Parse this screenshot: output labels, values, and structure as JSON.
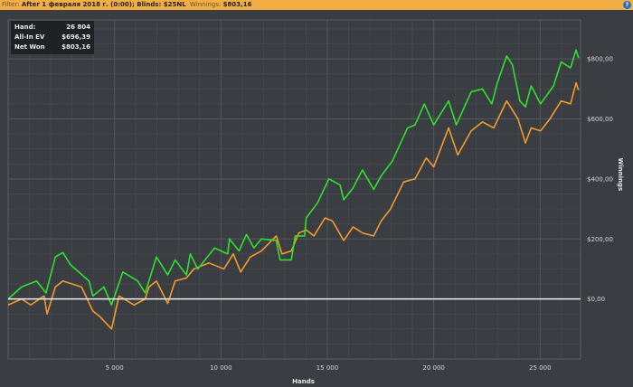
{
  "filter_bar": {
    "filter_label": "Filter:",
    "filter_value": "After 1 февраля 2018 г. (0:00); Blinds: $25NL",
    "winnings_label": "Winnings:",
    "winnings_value": "$803,16",
    "help_icon": "question-icon"
  },
  "legend": {
    "rows": [
      {
        "label": "Hand:",
        "value": "26 804"
      },
      {
        "label": "All-In EV",
        "value": "$696,39"
      },
      {
        "label": "Net Won",
        "value": "$803,16"
      }
    ]
  },
  "colors": {
    "net_won": "#2fe02f",
    "all_in_ev": "#f39a2e",
    "zero_line": "#f0f0f0",
    "background": "#3a3d42",
    "topbar": "#f2ae44"
  },
  "chart_data": {
    "type": "line",
    "xlabel": "Hands",
    "ylabel": "Winnings",
    "xlim": [
      0,
      26900
    ],
    "ylim": [
      -200,
      930
    ],
    "grid": true,
    "x_ticks": [
      5000,
      10000,
      15000,
      20000,
      25000
    ],
    "x_tick_labels": [
      "5 000",
      "10 000",
      "15 000",
      "20 000",
      "25 000"
    ],
    "y_ticks": [
      0,
      200,
      400,
      600,
      800
    ],
    "y_tick_labels": [
      "$0,00",
      "$200,00",
      "$400,00",
      "$600,00",
      "$800,00"
    ],
    "series": [
      {
        "name": "Net Won",
        "color": "#2fe02f",
        "points": [
          [
            0,
            0
          ],
          [
            630,
            40
          ],
          [
            1340,
            60
          ],
          [
            1780,
            20
          ],
          [
            2220,
            140
          ],
          [
            2570,
            155
          ],
          [
            2920,
            115
          ],
          [
            3800,
            60
          ],
          [
            3980,
            10
          ],
          [
            4500,
            40
          ],
          [
            4860,
            -20
          ],
          [
            5390,
            90
          ],
          [
            6090,
            60
          ],
          [
            6440,
            20
          ],
          [
            6970,
            140
          ],
          [
            7500,
            80
          ],
          [
            7850,
            130
          ],
          [
            8380,
            80
          ],
          [
            8560,
            150
          ],
          [
            8910,
            100
          ],
          [
            9700,
            170
          ],
          [
            10320,
            150
          ],
          [
            10400,
            200
          ],
          [
            10850,
            160
          ],
          [
            11200,
            215
          ],
          [
            11550,
            170
          ],
          [
            11900,
            200
          ],
          [
            12600,
            195
          ],
          [
            12780,
            130
          ],
          [
            13310,
            130
          ],
          [
            13490,
            210
          ],
          [
            13930,
            210
          ],
          [
            14010,
            270
          ],
          [
            14540,
            320
          ],
          [
            15070,
            400
          ],
          [
            15600,
            380
          ],
          [
            15770,
            330
          ],
          [
            16210,
            370
          ],
          [
            16650,
            430
          ],
          [
            17180,
            365
          ],
          [
            17530,
            410
          ],
          [
            18060,
            460
          ],
          [
            18770,
            570
          ],
          [
            19120,
            580
          ],
          [
            19560,
            650
          ],
          [
            20000,
            580
          ],
          [
            20700,
            660
          ],
          [
            21060,
            580
          ],
          [
            21760,
            690
          ],
          [
            22290,
            700
          ],
          [
            22730,
            650
          ],
          [
            22990,
            720
          ],
          [
            23430,
            810
          ],
          [
            23700,
            780
          ],
          [
            24050,
            660
          ],
          [
            24310,
            640
          ],
          [
            24580,
            710
          ],
          [
            25020,
            650
          ],
          [
            25630,
            710
          ],
          [
            25990,
            790
          ],
          [
            26430,
            770
          ],
          [
            26690,
            830
          ],
          [
            26804,
            803
          ]
        ]
      },
      {
        "name": "All-In EV",
        "color": "#f39a2e",
        "points": [
          [
            0,
            -20
          ],
          [
            630,
            0
          ],
          [
            1060,
            -20
          ],
          [
            1690,
            10
          ],
          [
            1830,
            -50
          ],
          [
            2220,
            40
          ],
          [
            2570,
            60
          ],
          [
            3450,
            40
          ],
          [
            3980,
            -40
          ],
          [
            4330,
            -60
          ],
          [
            4860,
            -100
          ],
          [
            5210,
            10
          ],
          [
            5920,
            -20
          ],
          [
            6440,
            0
          ],
          [
            6620,
            40
          ],
          [
            6970,
            60
          ],
          [
            7500,
            -15
          ],
          [
            7850,
            60
          ],
          [
            8380,
            70
          ],
          [
            8730,
            100
          ],
          [
            9440,
            120
          ],
          [
            10140,
            100
          ],
          [
            10580,
            150
          ],
          [
            10930,
            90
          ],
          [
            11380,
            140
          ],
          [
            11900,
            160
          ],
          [
            12600,
            210
          ],
          [
            12870,
            150
          ],
          [
            13310,
            160
          ],
          [
            13660,
            220
          ],
          [
            14010,
            230
          ],
          [
            14370,
            210
          ],
          [
            14890,
            270
          ],
          [
            15240,
            260
          ],
          [
            15770,
            195
          ],
          [
            16210,
            240
          ],
          [
            16650,
            220
          ],
          [
            17180,
            210
          ],
          [
            17530,
            260
          ],
          [
            17970,
            300
          ],
          [
            18590,
            390
          ],
          [
            19120,
            400
          ],
          [
            19650,
            470
          ],
          [
            20000,
            440
          ],
          [
            20700,
            570
          ],
          [
            21130,
            480
          ],
          [
            21760,
            560
          ],
          [
            22290,
            590
          ],
          [
            22820,
            570
          ],
          [
            23430,
            660
          ],
          [
            23960,
            600
          ],
          [
            24310,
            520
          ],
          [
            24580,
            570
          ],
          [
            25020,
            560
          ],
          [
            25460,
            600
          ],
          [
            25990,
            660
          ],
          [
            26430,
            650
          ],
          [
            26690,
            720
          ],
          [
            26804,
            696
          ]
        ]
      }
    ]
  }
}
